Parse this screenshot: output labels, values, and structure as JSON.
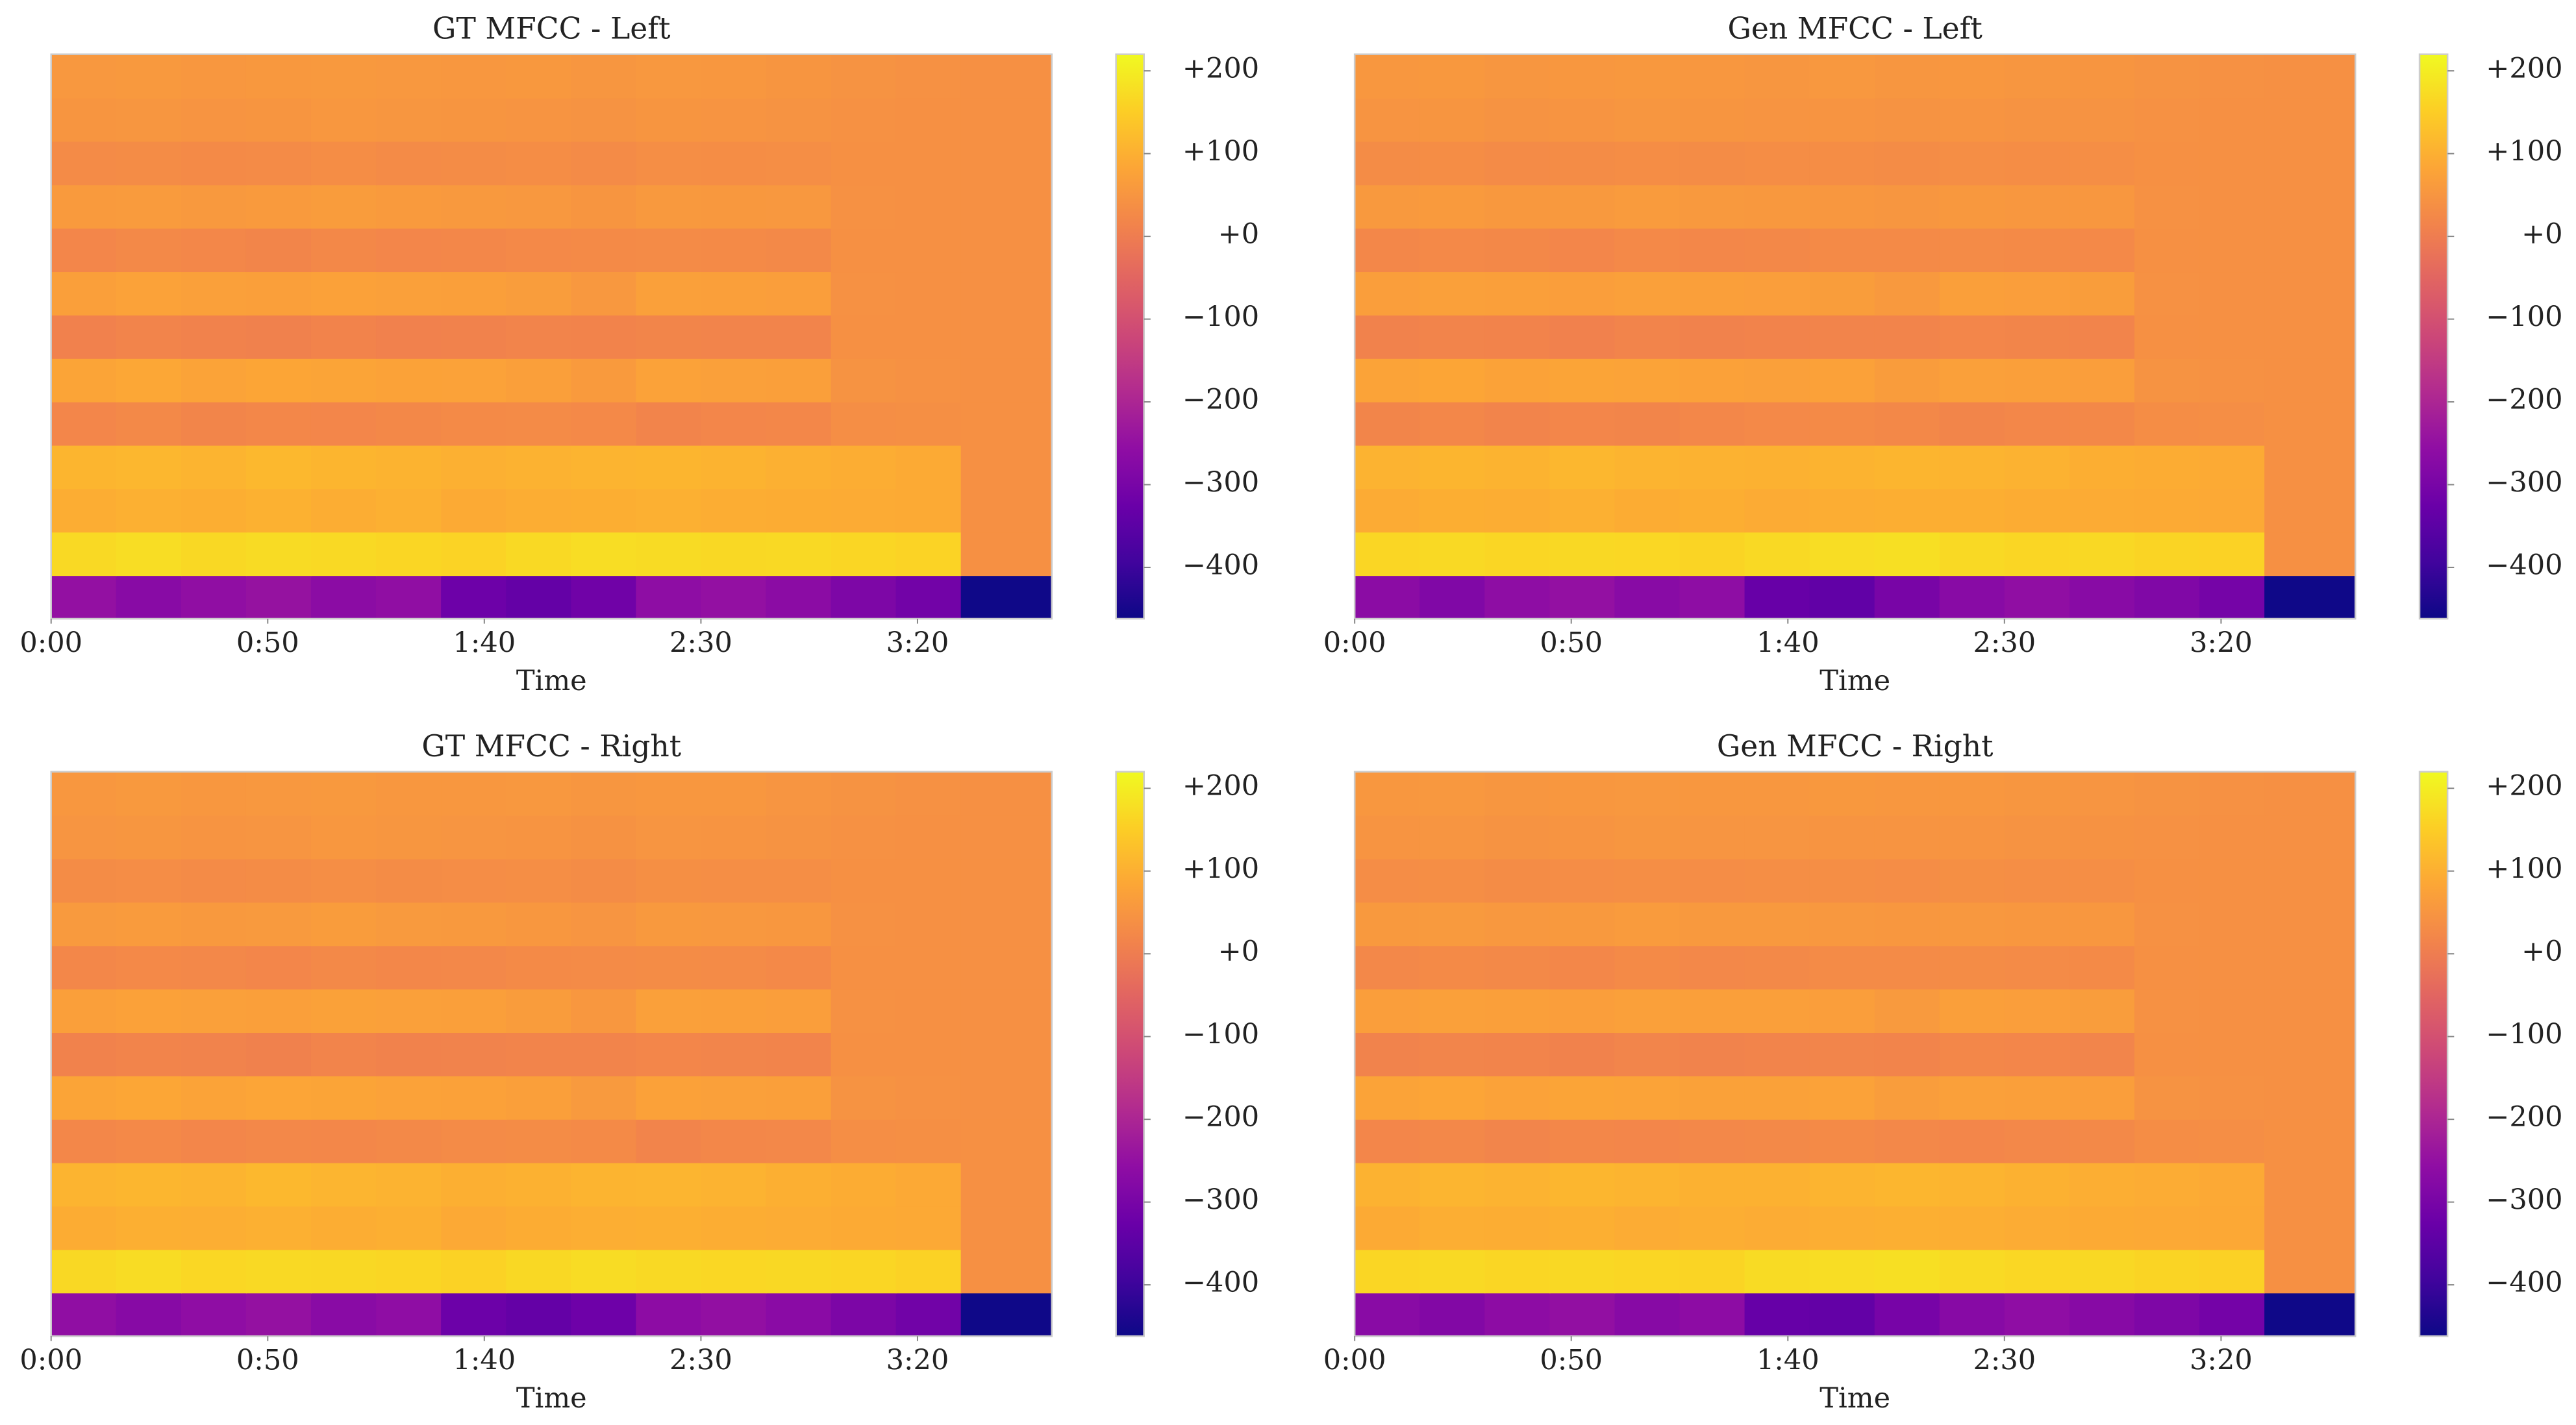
{
  "chart_data": [
    {
      "type": "heatmap",
      "title": "GT MFCC - Left",
      "xlabel": "Time",
      "colormap": "plasma",
      "bins": [
        0,
        15,
        30,
        45,
        60,
        75,
        90,
        105,
        120,
        135,
        150,
        165,
        180,
        195,
        210,
        231
      ],
      "xlim": [
        0,
        231
      ],
      "xticks": [
        {
          "value": 0,
          "label": "0:00"
        },
        {
          "value": 50,
          "label": "0:50"
        },
        {
          "value": 100,
          "label": "1:40"
        },
        {
          "value": 150,
          "label": "2:30"
        },
        {
          "value": 200,
          "label": "3:20"
        }
      ],
      "clim": [
        -462,
        220
      ],
      "cticks": [
        {
          "value": 200,
          "label": "+200"
        },
        {
          "value": 100,
          "label": "+100"
        },
        {
          "value": 0,
          "label": "+0"
        },
        {
          "value": -100,
          "label": "−100"
        },
        {
          "value": -200,
          "label": "−200"
        },
        {
          "value": -300,
          "label": "−300"
        },
        {
          "value": -400,
          "label": "−400"
        }
      ],
      "values": [
        [
          -250,
          -270,
          -255,
          -245,
          -265,
          -255,
          -320,
          -335,
          -315,
          -260,
          -250,
          -265,
          -290,
          -310,
          -460
        ],
        [
          170,
          175,
          168,
          172,
          170,
          165,
          160,
          170,
          175,
          172,
          168,
          170,
          165,
          160,
          40
        ],
        [
          95,
          100,
          98,
          102,
          96,
          100,
          90,
          95,
          98,
          100,
          96,
          94,
          92,
          90,
          40
        ],
        [
          110,
          112,
          108,
          115,
          110,
          106,
          100,
          104,
          108,
          110,
          106,
          100,
          95,
          90,
          40
        ],
        [
          20,
          25,
          18,
          22,
          20,
          24,
          28,
          30,
          26,
          15,
          20,
          22,
          35,
          38,
          40
        ],
        [
          80,
          85,
          78,
          82,
          80,
          76,
          75,
          70,
          60,
          75,
          72,
          70,
          45,
          42,
          40
        ],
        [
          10,
          15,
          12,
          8,
          14,
          10,
          12,
          15,
          14,
          18,
          16,
          15,
          40,
          40,
          40
        ],
        [
          70,
          75,
          72,
          70,
          74,
          72,
          70,
          65,
          55,
          72,
          70,
          68,
          42,
          40,
          40
        ],
        [
          20,
          25,
          22,
          18,
          24,
          20,
          22,
          26,
          28,
          30,
          28,
          25,
          40,
          40,
          40
        ],
        [
          60,
          62,
          58,
          60,
          64,
          60,
          58,
          55,
          50,
          58,
          56,
          55,
          42,
          40,
          40
        ],
        [
          30,
          32,
          28,
          30,
          34,
          30,
          32,
          34,
          30,
          36,
          34,
          35,
          40,
          40,
          40
        ],
        [
          50,
          52,
          48,
          50,
          54,
          52,
          50,
          48,
          45,
          50,
          48,
          46,
          42,
          40,
          40
        ],
        [
          55,
          58,
          54,
          56,
          58,
          55,
          54,
          56,
          52,
          55,
          54,
          50,
          45,
          42,
          40
        ]
      ]
    },
    {
      "type": "heatmap",
      "title": "Gen MFCC - Left",
      "xlabel": "Time",
      "colormap": "plasma",
      "bins": [
        0,
        15,
        30,
        45,
        60,
        75,
        90,
        105,
        120,
        135,
        150,
        165,
        180,
        195,
        210,
        231
      ],
      "xlim": [
        0,
        231
      ],
      "xticks": [
        {
          "value": 0,
          "label": "0:00"
        },
        {
          "value": 50,
          "label": "0:50"
        },
        {
          "value": 100,
          "label": "1:40"
        },
        {
          "value": 150,
          "label": "2:30"
        },
        {
          "value": 200,
          "label": "3:20"
        }
      ],
      "clim": [
        -462,
        220
      ],
      "cticks": [
        {
          "value": 200,
          "label": "+200"
        },
        {
          "value": 100,
          "label": "+100"
        },
        {
          "value": 0,
          "label": "+0"
        },
        {
          "value": -100,
          "label": "−100"
        },
        {
          "value": -200,
          "label": "−200"
        },
        {
          "value": -300,
          "label": "−300"
        },
        {
          "value": -400,
          "label": "−400"
        }
      ],
      "values": [
        [
          -265,
          -285,
          -260,
          -250,
          -270,
          -260,
          -330,
          -340,
          -300,
          -270,
          -255,
          -270,
          -285,
          -305,
          -460
        ],
        [
          165,
          170,
          165,
          168,
          166,
          162,
          170,
          175,
          178,
          170,
          165,
          168,
          162,
          158,
          40
        ],
        [
          92,
          98,
          96,
          100,
          94,
          98,
          92,
          96,
          98,
          98,
          94,
          92,
          90,
          88,
          40
        ],
        [
          105,
          110,
          106,
          112,
          108,
          104,
          102,
          106,
          110,
          108,
          104,
          98,
          94,
          90,
          40
        ],
        [
          18,
          22,
          16,
          20,
          18,
          22,
          26,
          28,
          24,
          18,
          22,
          24,
          34,
          36,
          40
        ],
        [
          78,
          82,
          76,
          80,
          78,
          74,
          72,
          74,
          64,
          72,
          70,
          68,
          46,
          42,
          40
        ],
        [
          12,
          16,
          14,
          10,
          16,
          12,
          14,
          16,
          15,
          20,
          18,
          16,
          40,
          40,
          40
        ],
        [
          68,
          72,
          70,
          68,
          72,
          70,
          68,
          66,
          58,
          70,
          68,
          66,
          42,
          40,
          40
        ],
        [
          22,
          26,
          24,
          20,
          26,
          22,
          24,
          28,
          28,
          30,
          28,
          26,
          40,
          40,
          40
        ],
        [
          58,
          60,
          56,
          58,
          62,
          58,
          56,
          54,
          52,
          56,
          54,
          54,
          42,
          40,
          40
        ],
        [
          32,
          34,
          30,
          32,
          34,
          32,
          34,
          34,
          32,
          36,
          34,
          35,
          40,
          40,
          40
        ],
        [
          48,
          50,
          46,
          48,
          52,
          50,
          48,
          47,
          46,
          48,
          46,
          45,
          42,
          40,
          40
        ],
        [
          54,
          56,
          52,
          54,
          56,
          54,
          52,
          55,
          52,
          54,
          52,
          50,
          45,
          42,
          40
        ]
      ]
    },
    {
      "type": "heatmap",
      "title": "GT MFCC - Right",
      "xlabel": "Time",
      "colormap": "plasma",
      "bins": [
        0,
        15,
        30,
        45,
        60,
        75,
        90,
        105,
        120,
        135,
        150,
        165,
        180,
        195,
        210,
        231
      ],
      "xlim": [
        0,
        231
      ],
      "xticks": [
        {
          "value": 0,
          "label": "0:00"
        },
        {
          "value": 50,
          "label": "0:50"
        },
        {
          "value": 100,
          "label": "1:40"
        },
        {
          "value": 150,
          "label": "2:30"
        },
        {
          "value": 200,
          "label": "3:20"
        }
      ],
      "clim": [
        -462,
        220
      ],
      "cticks": [
        {
          "value": 200,
          "label": "+200"
        },
        {
          "value": 100,
          "label": "+100"
        },
        {
          "value": 0,
          "label": "+0"
        },
        {
          "value": -100,
          "label": "−100"
        },
        {
          "value": -200,
          "label": "−200"
        },
        {
          "value": -300,
          "label": "−300"
        },
        {
          "value": -400,
          "label": "−400"
        }
      ],
      "values": [
        [
          -255,
          -272,
          -258,
          -248,
          -268,
          -258,
          -322,
          -336,
          -318,
          -262,
          -252,
          -266,
          -292,
          -312,
          -460
        ],
        [
          168,
          174,
          166,
          170,
          168,
          164,
          158,
          168,
          174,
          170,
          166,
          168,
          164,
          158,
          40
        ],
        [
          94,
          99,
          97,
          101,
          95,
          99,
          89,
          94,
          97,
          99,
          95,
          93,
          91,
          89,
          40
        ],
        [
          108,
          111,
          107,
          114,
          109,
          105,
          99,
          103,
          107,
          109,
          105,
          99,
          94,
          89,
          40
        ],
        [
          21,
          26,
          19,
          23,
          21,
          25,
          29,
          31,
          27,
          16,
          21,
          23,
          36,
          38,
          40
        ],
        [
          79,
          84,
          77,
          81,
          79,
          75,
          74,
          69,
          59,
          74,
          71,
          69,
          45,
          42,
          40
        ],
        [
          11,
          16,
          13,
          9,
          15,
          11,
          13,
          16,
          15,
          19,
          17,
          16,
          40,
          40,
          40
        ],
        [
          69,
          74,
          71,
          69,
          73,
          71,
          69,
          64,
          54,
          71,
          69,
          67,
          42,
          40,
          40
        ],
        [
          21,
          26,
          23,
          19,
          25,
          21,
          23,
          27,
          29,
          31,
          29,
          26,
          40,
          40,
          40
        ],
        [
          59,
          61,
          57,
          59,
          63,
          59,
          57,
          54,
          49,
          57,
          55,
          54,
          42,
          40,
          40
        ],
        [
          31,
          33,
          29,
          31,
          35,
          31,
          33,
          35,
          31,
          37,
          35,
          36,
          40,
          40,
          40
        ],
        [
          49,
          51,
          47,
          49,
          53,
          51,
          49,
          47,
          44,
          49,
          47,
          45,
          42,
          40,
          40
        ],
        [
          54,
          57,
          53,
          55,
          57,
          54,
          53,
          55,
          51,
          54,
          53,
          49,
          45,
          42,
          40
        ]
      ]
    },
    {
      "type": "heatmap",
      "title": "Gen MFCC - Right",
      "xlabel": "Time",
      "colormap": "plasma",
      "bins": [
        0,
        15,
        30,
        45,
        60,
        75,
        90,
        105,
        120,
        135,
        150,
        165,
        180,
        195,
        210,
        231
      ],
      "xlim": [
        0,
        231
      ],
      "xticks": [
        {
          "value": 0,
          "label": "0:00"
        },
        {
          "value": 50,
          "label": "0:50"
        },
        {
          "value": 100,
          "label": "1:40"
        },
        {
          "value": 150,
          "label": "2:30"
        },
        {
          "value": 200,
          "label": "3:20"
        }
      ],
      "clim": [
        -462,
        220
      ],
      "cticks": [
        {
          "value": 200,
          "label": "+200"
        },
        {
          "value": 100,
          "label": "+100"
        },
        {
          "value": 0,
          "label": "+0"
        },
        {
          "value": -100,
          "label": "−100"
        },
        {
          "value": -200,
          "label": "−200"
        },
        {
          "value": -300,
          "label": "−300"
        },
        {
          "value": -400,
          "label": "−400"
        }
      ],
      "values": [
        [
          -268,
          -282,
          -262,
          -252,
          -272,
          -262,
          -332,
          -338,
          -302,
          -272,
          -258,
          -272,
          -288,
          -308,
          -460
        ],
        [
          164,
          169,
          164,
          167,
          165,
          161,
          172,
          176,
          178,
          171,
          166,
          167,
          161,
          157,
          40
        ],
        [
          91,
          97,
          95,
          99,
          93,
          97,
          93,
          97,
          99,
          97,
          93,
          91,
          89,
          87,
          40
        ],
        [
          104,
          109,
          105,
          111,
          107,
          103,
          103,
          107,
          111,
          107,
          103,
          97,
          93,
          89,
          40
        ],
        [
          19,
          23,
          17,
          21,
          19,
          23,
          25,
          27,
          23,
          19,
          23,
          25,
          34,
          36,
          40
        ],
        [
          77,
          81,
          75,
          79,
          77,
          73,
          73,
          75,
          65,
          71,
          69,
          67,
          46,
          42,
          40
        ],
        [
          13,
          17,
          15,
          11,
          17,
          13,
          15,
          17,
          16,
          21,
          19,
          17,
          40,
          40,
          40
        ],
        [
          67,
          71,
          69,
          67,
          71,
          69,
          69,
          67,
          59,
          69,
          67,
          65,
          42,
          40,
          40
        ],
        [
          23,
          27,
          25,
          21,
          27,
          23,
          25,
          29,
          29,
          31,
          29,
          27,
          40,
          40,
          40
        ],
        [
          57,
          59,
          55,
          57,
          61,
          57,
          57,
          55,
          53,
          55,
          53,
          53,
          42,
          40,
          40
        ],
        [
          33,
          35,
          31,
          33,
          35,
          33,
          35,
          35,
          33,
          37,
          35,
          36,
          40,
          40,
          40
        ],
        [
          47,
          49,
          45,
          47,
          51,
          49,
          49,
          48,
          47,
          47,
          45,
          44,
          42,
          40,
          40
        ],
        [
          53,
          55,
          51,
          53,
          55,
          53,
          53,
          56,
          53,
          53,
          51,
          49,
          45,
          42,
          40
        ]
      ]
    }
  ]
}
